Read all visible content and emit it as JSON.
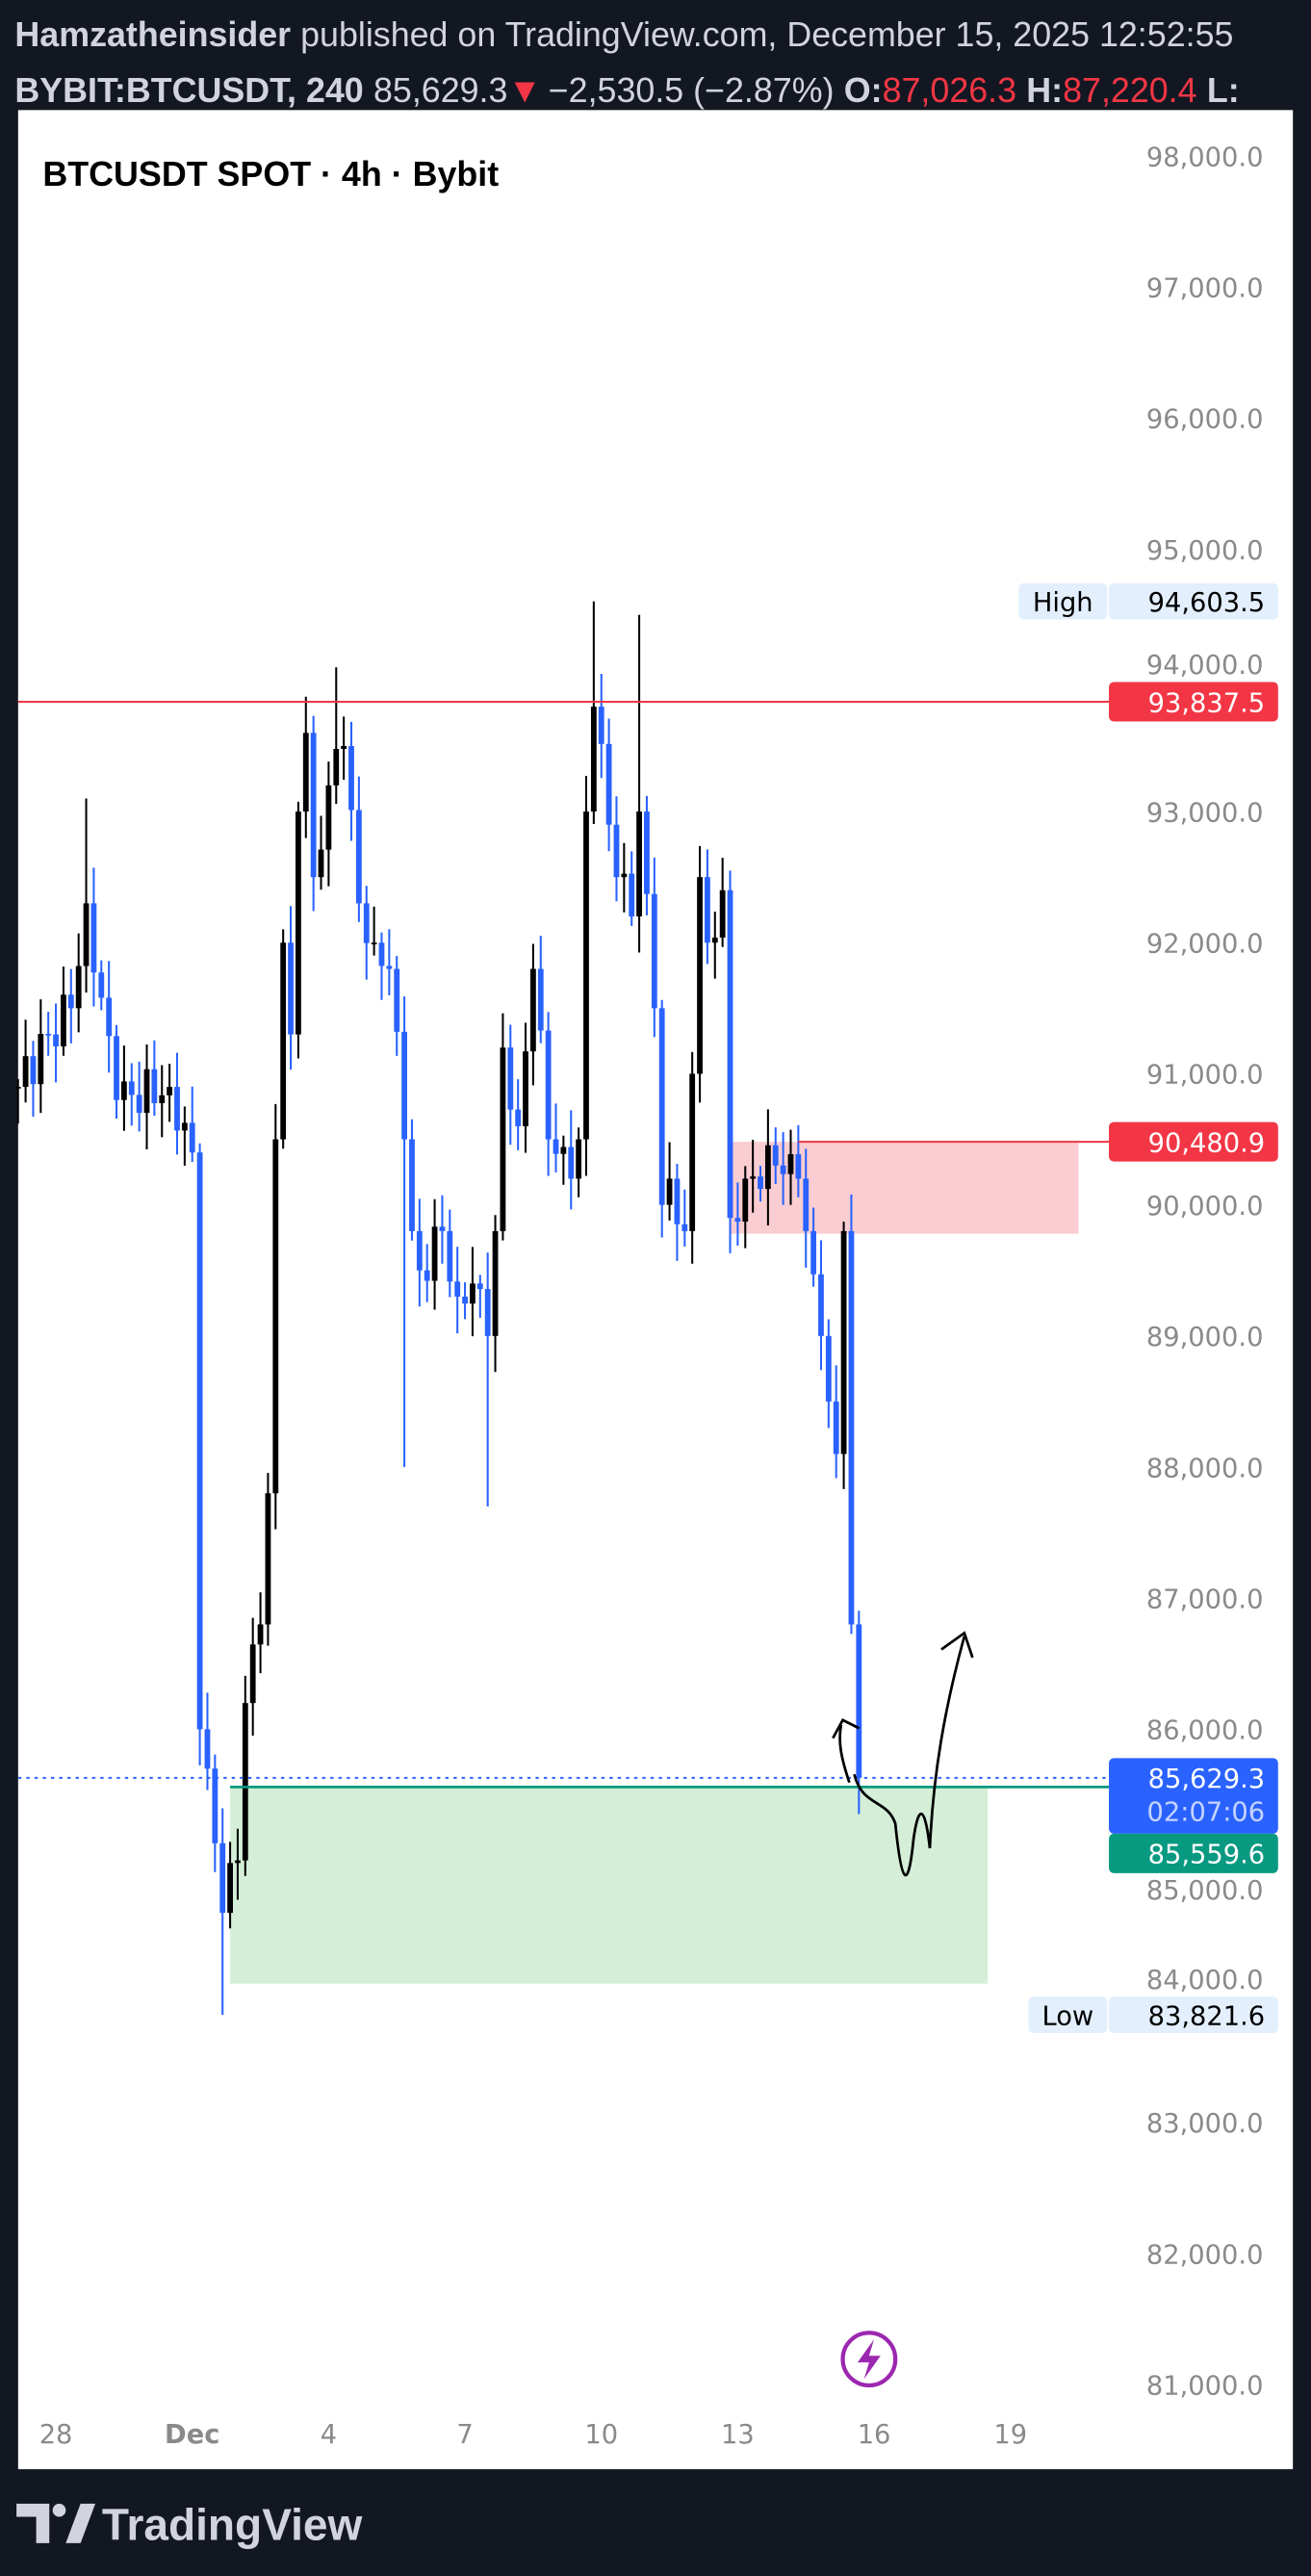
{
  "header": {
    "author": "Hamzatheinsider",
    "published_text": " published on TradingView.com, December 15, 2025 12:52:55",
    "symbol": "BYBIT:BTCUSDT, 240",
    "last": "85,629.3",
    "down_arrow": "▼",
    "change": "−2,530.5 (−2.87%)",
    "open_label": "O:",
    "open": "87,026.3",
    "high_label": "H:",
    "high": "87,220.4",
    "low_label": "L:"
  },
  "chart_title": "BTCUSDT SPOT · 4h · Bybit",
  "footer": {
    "brand": "TradingView"
  },
  "colors": {
    "background": "#131722",
    "up_candle": "#000000",
    "down_candle": "#2962ff",
    "resistance": "#f23645",
    "support": "#089981",
    "supply_zone": "#f9cdd1",
    "demand_zone": "#d4eed7",
    "last_price": "#2962ff",
    "flash_icon": "#9c27b0"
  },
  "icons": {
    "flash": "lightning-bolt-icon",
    "logo": "tradingview-logo-icon"
  },
  "chart_data": {
    "type": "candlestick",
    "interval": "4h",
    "ylim": [
      81000,
      98000
    ],
    "y_ticks": [
      "98,000.0",
      "97,000.0",
      "96,000.0",
      "95,000.0",
      "94,000.0",
      "93,000.0",
      "92,000.0",
      "91,000.0",
      "90,000.0",
      "89,000.0",
      "88,000.0",
      "87,000.0",
      "86,000.0",
      "85,000.0",
      "84,000.0",
      "83,000.0",
      "82,000.0",
      "81,000.0"
    ],
    "x_ticks": [
      {
        "label": "28",
        "date": "2025-11-28"
      },
      {
        "label": "Dec",
        "date": "2025-12-01"
      },
      {
        "label": "4",
        "date": "2025-12-04"
      },
      {
        "label": "7",
        "date": "2025-12-07"
      },
      {
        "label": "10",
        "date": "2025-12-10"
      },
      {
        "label": "13",
        "date": "2025-12-13"
      },
      {
        "label": "16",
        "date": "2025-12-16"
      },
      {
        "label": "19",
        "date": "2025-12-19"
      }
    ],
    "close_path": [
      [
        "2025-11-27 04:00",
        90900
      ],
      [
        "2025-11-27 20:00",
        91300
      ],
      [
        "2025-11-28 08:00",
        91500
      ],
      [
        "2025-11-28 16:00",
        92300
      ],
      [
        "2025-11-29 08:00",
        90800
      ],
      [
        "2025-11-30 12:00",
        90900
      ],
      [
        "2025-12-01 00:00",
        90400
      ],
      [
        "2025-12-01 04:00",
        86000
      ],
      [
        "2025-12-01 08:00",
        85700
      ],
      [
        "2025-12-01 16:00",
        84600
      ],
      [
        "2025-12-02 00:00",
        85000
      ],
      [
        "2025-12-02 04:00",
        86200
      ],
      [
        "2025-12-02 12:00",
        86800
      ],
      [
        "2025-12-02 16:00",
        87800
      ],
      [
        "2025-12-02 20:00",
        90500
      ],
      [
        "2025-12-03 00:00",
        92000
      ],
      [
        "2025-12-03 04:00",
        91300
      ],
      [
        "2025-12-03 08:00",
        93000
      ],
      [
        "2025-12-03 12:00",
        93600
      ],
      [
        "2025-12-03 16:00",
        92500
      ],
      [
        "2025-12-04 00:00",
        93200
      ],
      [
        "2025-12-04 08:00",
        93500
      ],
      [
        "2025-12-04 16:00",
        92300
      ],
      [
        "2025-12-05 00:00",
        92000
      ],
      [
        "2025-12-05 08:00",
        91800
      ],
      [
        "2025-12-05 16:00",
        90500
      ],
      [
        "2025-12-05 20:00",
        89800
      ],
      [
        "2025-12-06 00:00",
        89500
      ],
      [
        "2025-12-06 12:00",
        89800
      ],
      [
        "2025-12-06 20:00",
        89300
      ],
      [
        "2025-12-07 04:00",
        89400
      ],
      [
        "2025-12-07 12:00",
        89000
      ],
      [
        "2025-12-07 16:00",
        89800
      ],
      [
        "2025-12-07 20:00",
        91200
      ],
      [
        "2025-12-08 04:00",
        90600
      ],
      [
        "2025-12-08 12:00",
        91800
      ],
      [
        "2025-12-08 20:00",
        90500
      ],
      [
        "2025-12-09 08:00",
        90200
      ],
      [
        "2025-12-09 12:00",
        90500
      ],
      [
        "2025-12-09 16:00",
        93000
      ],
      [
        "2025-12-09 20:00",
        93800
      ],
      [
        "2025-12-10 04:00",
        92900
      ],
      [
        "2025-12-10 08:00",
        92500
      ],
      [
        "2025-12-10 16:00",
        92200
      ],
      [
        "2025-12-10 20:00",
        93000
      ],
      [
        "2025-12-11 04:00",
        91500
      ],
      [
        "2025-12-11 08:00",
        90000
      ],
      [
        "2025-12-11 12:00",
        90200
      ],
      [
        "2025-12-11 20:00",
        89800
      ],
      [
        "2025-12-12 00:00",
        91000
      ],
      [
        "2025-12-12 04:00",
        92500
      ],
      [
        "2025-12-12 08:00",
        92000
      ],
      [
        "2025-12-12 16:00",
        92400
      ],
      [
        "2025-12-12 20:00",
        89900
      ],
      [
        "2025-12-13 04:00",
        90200
      ],
      [
        "2025-12-13 20:00",
        90300
      ],
      [
        "2025-12-14 08:00",
        90200
      ],
      [
        "2025-12-14 12:00",
        89800
      ],
      [
        "2025-12-14 20:00",
        89000
      ],
      [
        "2025-12-15 00:00",
        88500
      ],
      [
        "2025-12-15 04:00",
        88100
      ],
      [
        "2025-12-15 08:00",
        89800
      ],
      [
        "2025-12-15 12:00",
        86800
      ],
      [
        "2025-12-15 16:00",
        85629.3
      ]
    ],
    "wick_extremes": [
      [
        "2025-12-01 16:00",
        83821.6
      ],
      [
        "2025-12-09 20:00",
        94603.5
      ],
      [
        "2025-12-10 20:00",
        94500
      ],
      [
        "2025-12-07 12:00",
        87700
      ],
      [
        "2025-12-04 04:00",
        94100
      ],
      [
        "2025-11-28 16:00",
        93100
      ],
      [
        "2025-12-05 16:00",
        88000
      ]
    ],
    "high_label": {
      "label": "High",
      "value": "94,603.5"
    },
    "low_label": {
      "label": "Low",
      "value": "83,821.6"
    },
    "levels": [
      {
        "name": "resistance",
        "value": 93837.5,
        "label": "93,837.5"
      },
      {
        "name": "supply-top",
        "value": 90480.9,
        "label": "90,480.9"
      },
      {
        "name": "demand-top",
        "value": 85559.6,
        "label": "85,559.6"
      },
      {
        "name": "last-price",
        "value": 85629.3,
        "label": "85,629.3",
        "countdown": "02:07:06"
      }
    ],
    "zones": [
      {
        "name": "supply-zone",
        "from": "2025-12-12 20:00",
        "to": "2025-12-20 12:00",
        "top": 90480.9,
        "bottom": 89780
      },
      {
        "name": "demand-zone",
        "from": "2025-12-01 20:00",
        "to": "2025-12-18 12:00",
        "top": 85559.6,
        "bottom": 84060
      }
    ]
  }
}
